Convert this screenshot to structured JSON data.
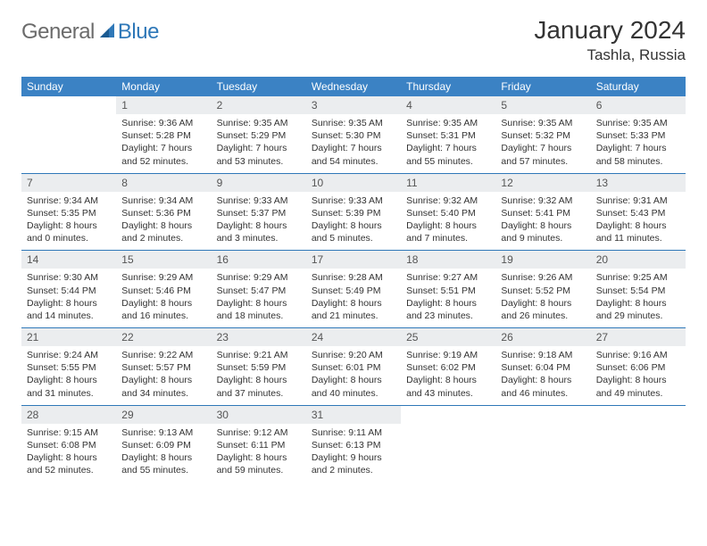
{
  "brand": {
    "general": "General",
    "blue": "Blue"
  },
  "title": "January 2024",
  "subtitle": "Tashla, Russia",
  "colors": {
    "header_bg": "#3b82c4",
    "header_text": "#ffffff",
    "daynum_bg": "#ebedef",
    "divider": "#2f78b8",
    "body_text": "#333333",
    "logo_gray": "#6b6b6b",
    "logo_blue": "#2f78b8"
  },
  "weekdays": [
    "Sunday",
    "Monday",
    "Tuesday",
    "Wednesday",
    "Thursday",
    "Friday",
    "Saturday"
  ],
  "weeks": [
    [
      null,
      {
        "n": "1",
        "sunrise": "Sunrise: 9:36 AM",
        "sunset": "Sunset: 5:28 PM",
        "day1": "Daylight: 7 hours",
        "day2": "and 52 minutes."
      },
      {
        "n": "2",
        "sunrise": "Sunrise: 9:35 AM",
        "sunset": "Sunset: 5:29 PM",
        "day1": "Daylight: 7 hours",
        "day2": "and 53 minutes."
      },
      {
        "n": "3",
        "sunrise": "Sunrise: 9:35 AM",
        "sunset": "Sunset: 5:30 PM",
        "day1": "Daylight: 7 hours",
        "day2": "and 54 minutes."
      },
      {
        "n": "4",
        "sunrise": "Sunrise: 9:35 AM",
        "sunset": "Sunset: 5:31 PM",
        "day1": "Daylight: 7 hours",
        "day2": "and 55 minutes."
      },
      {
        "n": "5",
        "sunrise": "Sunrise: 9:35 AM",
        "sunset": "Sunset: 5:32 PM",
        "day1": "Daylight: 7 hours",
        "day2": "and 57 minutes."
      },
      {
        "n": "6",
        "sunrise": "Sunrise: 9:35 AM",
        "sunset": "Sunset: 5:33 PM",
        "day1": "Daylight: 7 hours",
        "day2": "and 58 minutes."
      }
    ],
    [
      {
        "n": "7",
        "sunrise": "Sunrise: 9:34 AM",
        "sunset": "Sunset: 5:35 PM",
        "day1": "Daylight: 8 hours",
        "day2": "and 0 minutes."
      },
      {
        "n": "8",
        "sunrise": "Sunrise: 9:34 AM",
        "sunset": "Sunset: 5:36 PM",
        "day1": "Daylight: 8 hours",
        "day2": "and 2 minutes."
      },
      {
        "n": "9",
        "sunrise": "Sunrise: 9:33 AM",
        "sunset": "Sunset: 5:37 PM",
        "day1": "Daylight: 8 hours",
        "day2": "and 3 minutes."
      },
      {
        "n": "10",
        "sunrise": "Sunrise: 9:33 AM",
        "sunset": "Sunset: 5:39 PM",
        "day1": "Daylight: 8 hours",
        "day2": "and 5 minutes."
      },
      {
        "n": "11",
        "sunrise": "Sunrise: 9:32 AM",
        "sunset": "Sunset: 5:40 PM",
        "day1": "Daylight: 8 hours",
        "day2": "and 7 minutes."
      },
      {
        "n": "12",
        "sunrise": "Sunrise: 9:32 AM",
        "sunset": "Sunset: 5:41 PM",
        "day1": "Daylight: 8 hours",
        "day2": "and 9 minutes."
      },
      {
        "n": "13",
        "sunrise": "Sunrise: 9:31 AM",
        "sunset": "Sunset: 5:43 PM",
        "day1": "Daylight: 8 hours",
        "day2": "and 11 minutes."
      }
    ],
    [
      {
        "n": "14",
        "sunrise": "Sunrise: 9:30 AM",
        "sunset": "Sunset: 5:44 PM",
        "day1": "Daylight: 8 hours",
        "day2": "and 14 minutes."
      },
      {
        "n": "15",
        "sunrise": "Sunrise: 9:29 AM",
        "sunset": "Sunset: 5:46 PM",
        "day1": "Daylight: 8 hours",
        "day2": "and 16 minutes."
      },
      {
        "n": "16",
        "sunrise": "Sunrise: 9:29 AM",
        "sunset": "Sunset: 5:47 PM",
        "day1": "Daylight: 8 hours",
        "day2": "and 18 minutes."
      },
      {
        "n": "17",
        "sunrise": "Sunrise: 9:28 AM",
        "sunset": "Sunset: 5:49 PM",
        "day1": "Daylight: 8 hours",
        "day2": "and 21 minutes."
      },
      {
        "n": "18",
        "sunrise": "Sunrise: 9:27 AM",
        "sunset": "Sunset: 5:51 PM",
        "day1": "Daylight: 8 hours",
        "day2": "and 23 minutes."
      },
      {
        "n": "19",
        "sunrise": "Sunrise: 9:26 AM",
        "sunset": "Sunset: 5:52 PM",
        "day1": "Daylight: 8 hours",
        "day2": "and 26 minutes."
      },
      {
        "n": "20",
        "sunrise": "Sunrise: 9:25 AM",
        "sunset": "Sunset: 5:54 PM",
        "day1": "Daylight: 8 hours",
        "day2": "and 29 minutes."
      }
    ],
    [
      {
        "n": "21",
        "sunrise": "Sunrise: 9:24 AM",
        "sunset": "Sunset: 5:55 PM",
        "day1": "Daylight: 8 hours",
        "day2": "and 31 minutes."
      },
      {
        "n": "22",
        "sunrise": "Sunrise: 9:22 AM",
        "sunset": "Sunset: 5:57 PM",
        "day1": "Daylight: 8 hours",
        "day2": "and 34 minutes."
      },
      {
        "n": "23",
        "sunrise": "Sunrise: 9:21 AM",
        "sunset": "Sunset: 5:59 PM",
        "day1": "Daylight: 8 hours",
        "day2": "and 37 minutes."
      },
      {
        "n": "24",
        "sunrise": "Sunrise: 9:20 AM",
        "sunset": "Sunset: 6:01 PM",
        "day1": "Daylight: 8 hours",
        "day2": "and 40 minutes."
      },
      {
        "n": "25",
        "sunrise": "Sunrise: 9:19 AM",
        "sunset": "Sunset: 6:02 PM",
        "day1": "Daylight: 8 hours",
        "day2": "and 43 minutes."
      },
      {
        "n": "26",
        "sunrise": "Sunrise: 9:18 AM",
        "sunset": "Sunset: 6:04 PM",
        "day1": "Daylight: 8 hours",
        "day2": "and 46 minutes."
      },
      {
        "n": "27",
        "sunrise": "Sunrise: 9:16 AM",
        "sunset": "Sunset: 6:06 PM",
        "day1": "Daylight: 8 hours",
        "day2": "and 49 minutes."
      }
    ],
    [
      {
        "n": "28",
        "sunrise": "Sunrise: 9:15 AM",
        "sunset": "Sunset: 6:08 PM",
        "day1": "Daylight: 8 hours",
        "day2": "and 52 minutes."
      },
      {
        "n": "29",
        "sunrise": "Sunrise: 9:13 AM",
        "sunset": "Sunset: 6:09 PM",
        "day1": "Daylight: 8 hours",
        "day2": "and 55 minutes."
      },
      {
        "n": "30",
        "sunrise": "Sunrise: 9:12 AM",
        "sunset": "Sunset: 6:11 PM",
        "day1": "Daylight: 8 hours",
        "day2": "and 59 minutes."
      },
      {
        "n": "31",
        "sunrise": "Sunrise: 9:11 AM",
        "sunset": "Sunset: 6:13 PM",
        "day1": "Daylight: 9 hours",
        "day2": "and 2 minutes."
      },
      null,
      null,
      null
    ]
  ]
}
